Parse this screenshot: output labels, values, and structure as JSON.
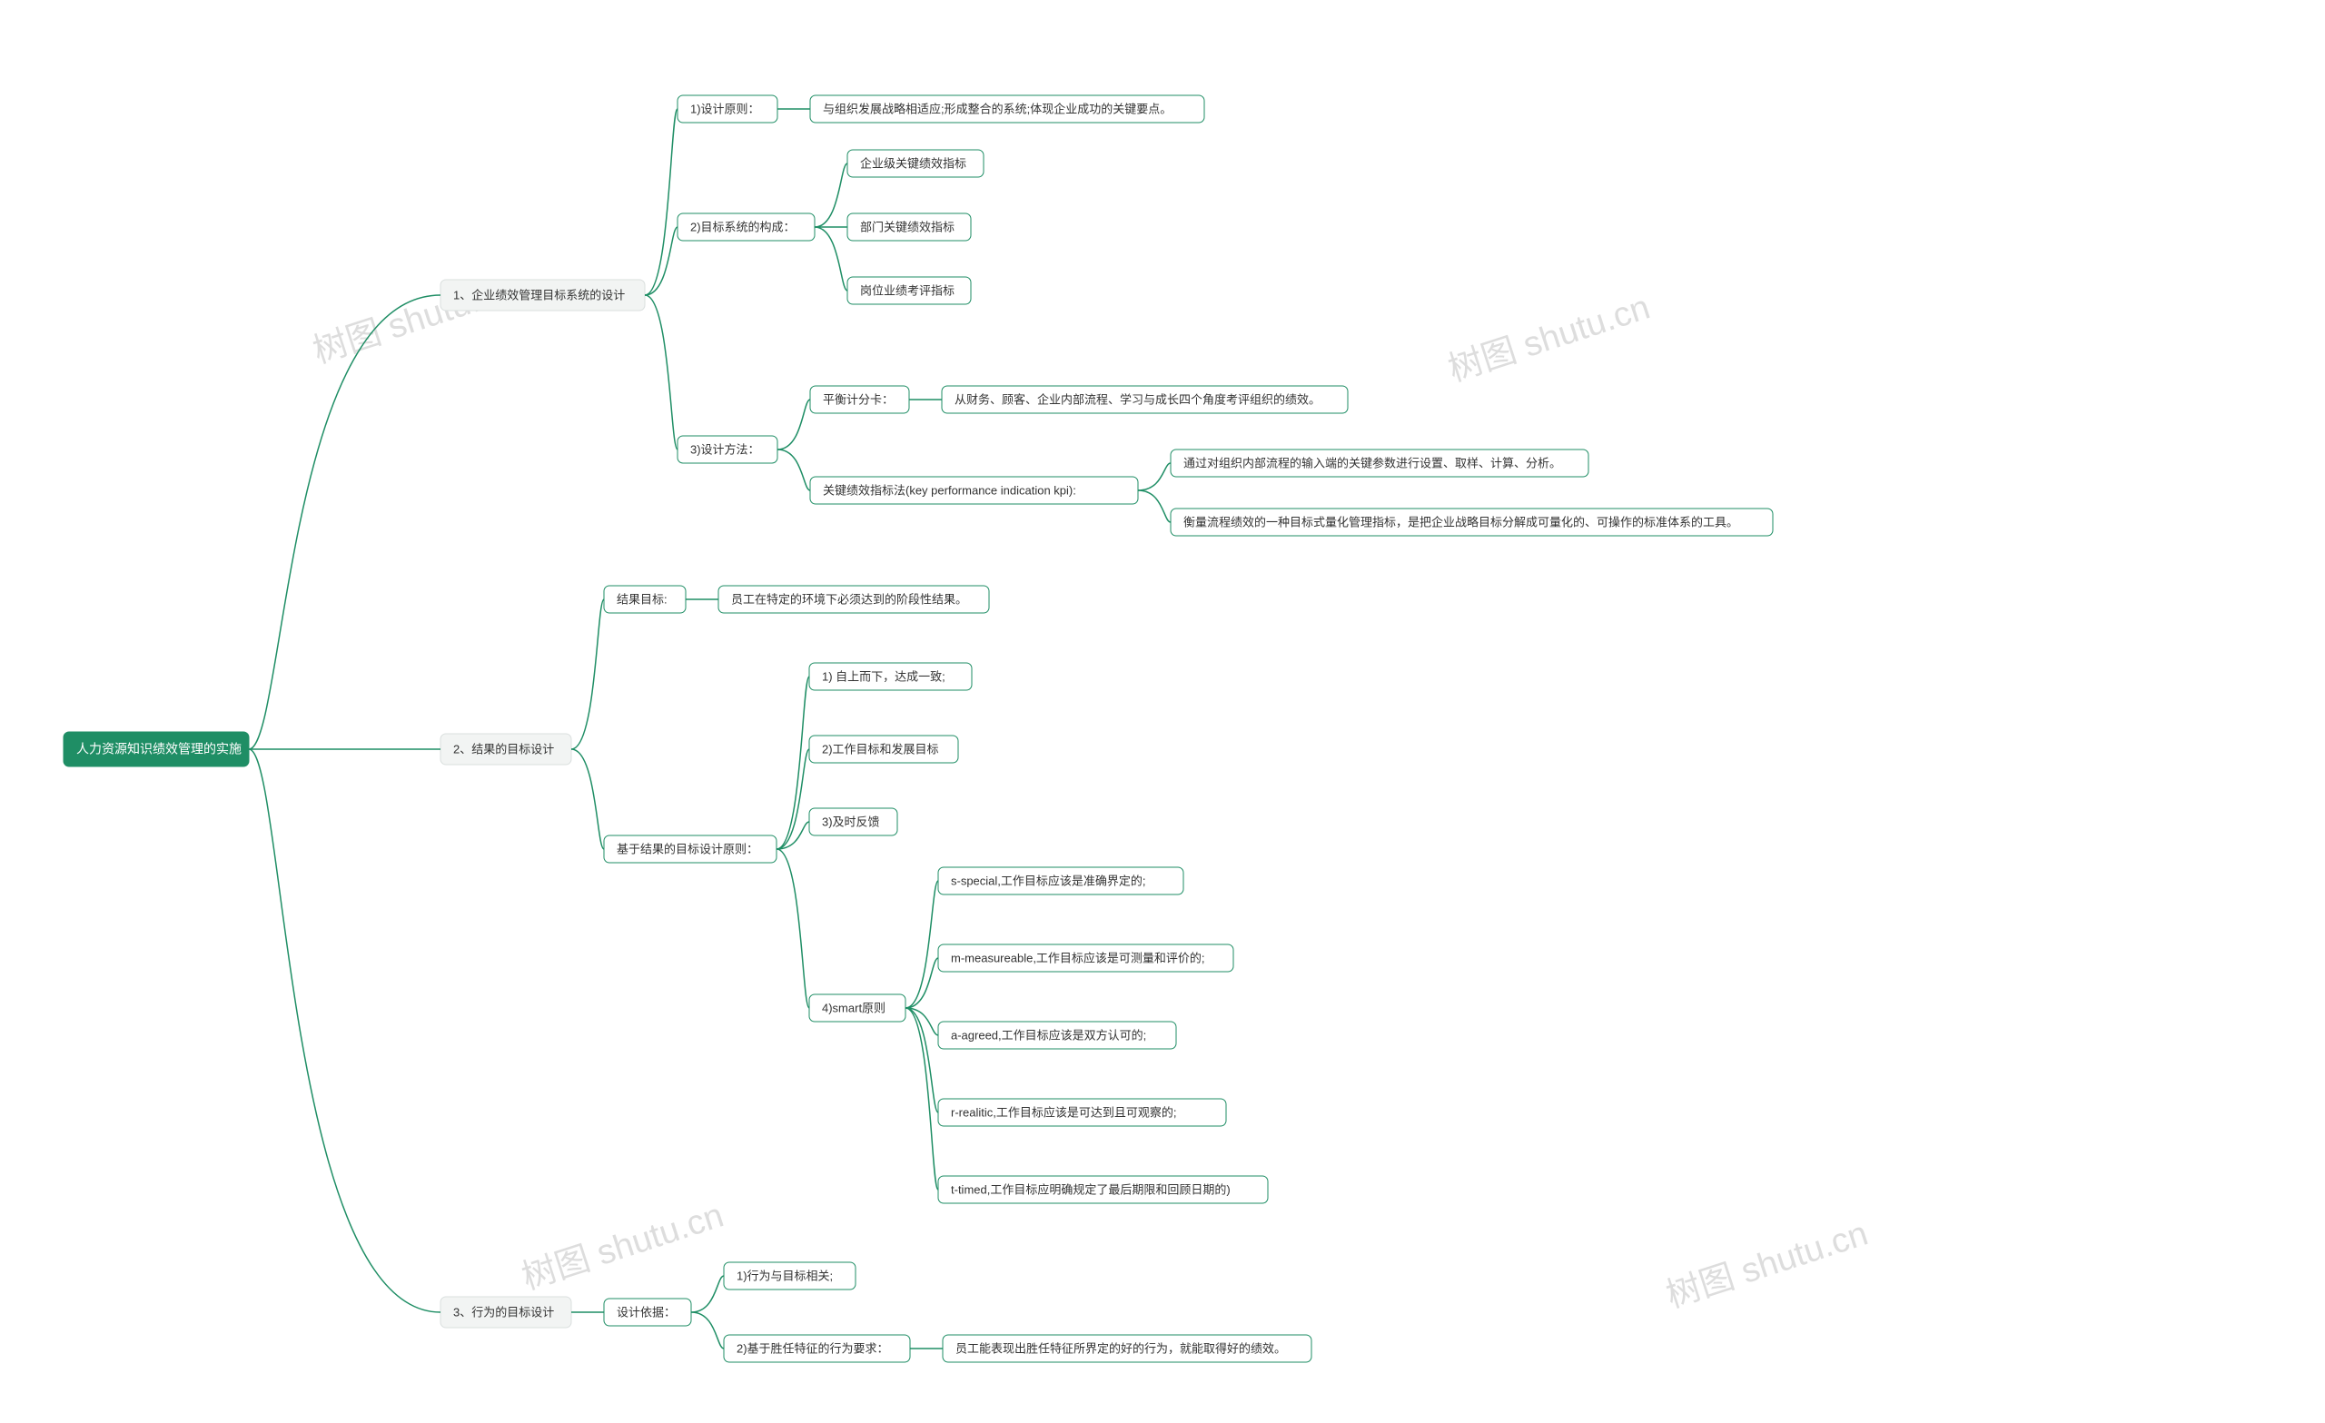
{
  "meta": {
    "background_color": "#ffffff",
    "line_color": "#1f8e65",
    "root_fill": "#1f8e65",
    "root_text_color": "#ffffff",
    "branch1_fill": "#f2f4f3",
    "branch1_stroke": "#dadfde",
    "node_fill": "#ffffff",
    "node_stroke": "#1f8e65",
    "node_text_color": "#333333",
    "font_family": "Microsoft YaHei",
    "node_fontsize": 13,
    "root_fontsize": 14,
    "border_radius": 6,
    "line_width": 1.5,
    "watermark_text": "树图 shutu.cn",
    "watermark_color": "#dddddd",
    "watermark_fontsize": 38
  },
  "root": {
    "label": "人力资源知识绩效管理的实施"
  },
  "b1": {
    "label": "1、企业绩效管理目标系统的设计",
    "c1": {
      "label": "1)设计原则：",
      "d1": {
        "label": "与组织发展战略相适应;形成整合的系统;体现企业成功的关键要点。"
      }
    },
    "c2": {
      "label": "2)目标系统的构成：",
      "d1": {
        "label": "企业级关键绩效指标"
      },
      "d2": {
        "label": "部门关键绩效指标"
      },
      "d3": {
        "label": "岗位业绩考评指标"
      }
    },
    "c3": {
      "label": "3)设计方法：",
      "d1": {
        "label": "平衡计分卡：",
        "e1": {
          "label": "从财务、顾客、企业内部流程、学习与成长四个角度考评组织的绩效。"
        }
      },
      "d2": {
        "label": "关键绩效指标法(key performance indication kpi):",
        "e1": {
          "label": "通过对组织内部流程的输入端的关键参数进行设置、取样、计算、分析。"
        },
        "e2": {
          "label": "衡量流程绩效的一种目标式量化管理指标，是把企业战略目标分解成可量化的、可操作的标准体系的工具。"
        }
      }
    }
  },
  "b2": {
    "label": "2、结果的目标设计",
    "c1": {
      "label": "结果目标:",
      "d1": {
        "label": "员工在特定的环境下必须达到的阶段性结果。"
      }
    },
    "c2": {
      "label": "基于结果的目标设计原则：",
      "d1": {
        "label": "1) 自上而下，达成一致;"
      },
      "d2": {
        "label": "2)工作目标和发展目标"
      },
      "d3": {
        "label": "3)及时反馈"
      },
      "d4": {
        "label": "4)smart原则",
        "e1": {
          "label": "s-special,工作目标应该是准确界定的;"
        },
        "e2": {
          "label": "m-measureable,工作目标应该是可测量和评价的;"
        },
        "e3": {
          "label": "a-agreed,工作目标应该是双方认可的;"
        },
        "e4": {
          "label": "r-realitic,工作目标应该是可达到且可观察的;"
        },
        "e5": {
          "label": "t-timed,工作目标应明确规定了最后期限和回顾日期的)"
        }
      }
    }
  },
  "b3": {
    "label": "3、行为的目标设计",
    "c1": {
      "label": "设计依据：",
      "d1": {
        "label": "1)行为与目标相关;"
      },
      "d2": {
        "label": "2)基于胜任特征的行为要求：",
        "e1": {
          "label": "员工能表现出胜任特征所界定的好的行为，就能取得好的绩效。"
        }
      }
    }
  }
}
